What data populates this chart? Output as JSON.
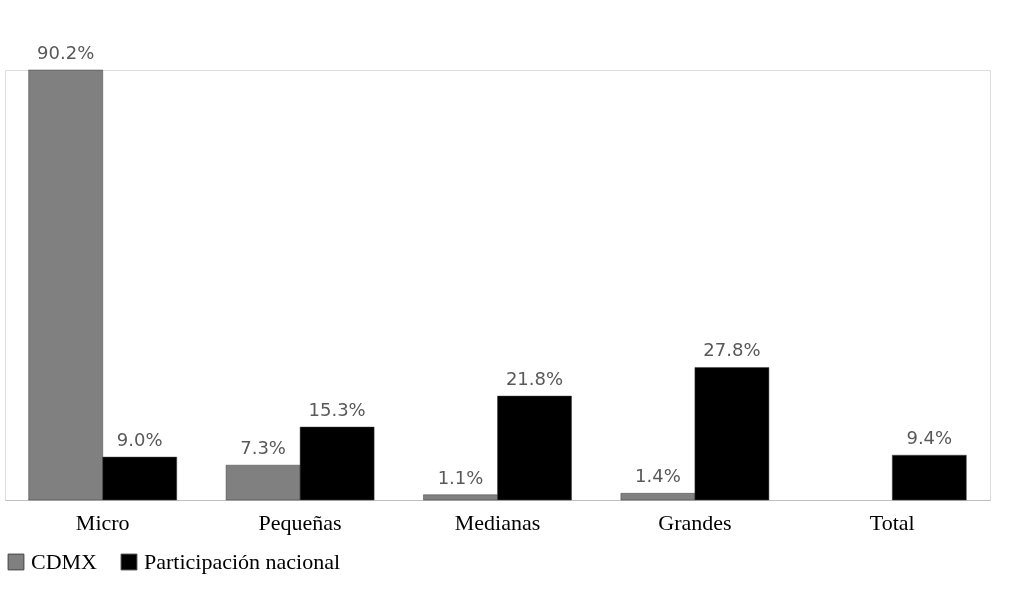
{
  "chart_data": {
    "type": "bar",
    "categories": [
      "Micro",
      "Pequeñas",
      "Medianas",
      "Grandes",
      "Total"
    ],
    "series": [
      {
        "name": "CDMX",
        "color": "#808080",
        "values": [
          90.2,
          7.3,
          1.1,
          1.4,
          null
        ],
        "value_labels": [
          "90.2%",
          "7.3%",
          "1.1%",
          "1.4%",
          null
        ]
      },
      {
        "name": "Participación nacional",
        "color": "#000000",
        "values": [
          9.0,
          15.3,
          21.8,
          27.8,
          9.4
        ],
        "value_labels": [
          "9.0%",
          "15.3%",
          "21.8%",
          "27.8%",
          "9.4%"
        ]
      }
    ],
    "legend": "bottom",
    "grid": false
  }
}
